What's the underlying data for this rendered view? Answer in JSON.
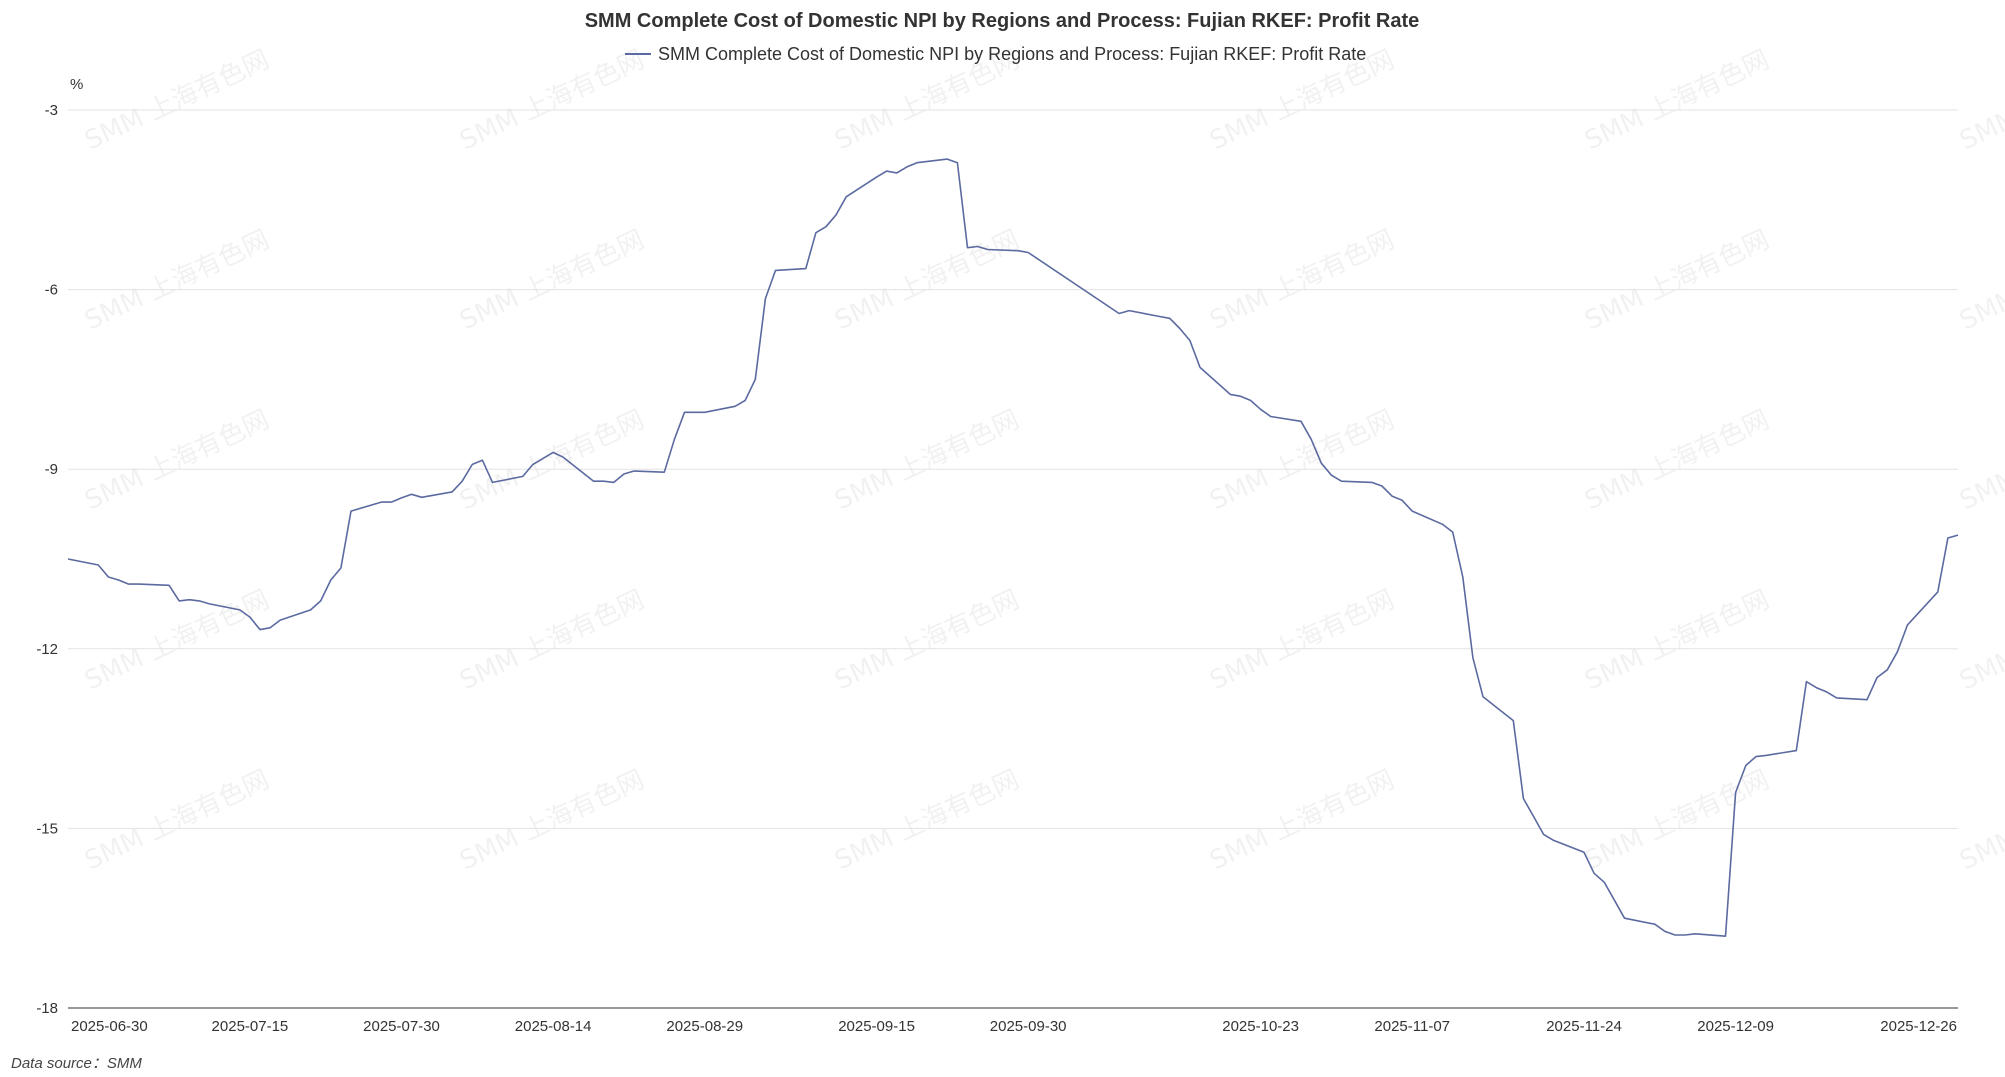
{
  "chart_data": {
    "type": "line",
    "title": "SMM Complete Cost of Domestic NPI by Regions and Process: Fujian RKEF: Profit Rate",
    "ylabel": "%",
    "ylim": [
      -18,
      -3
    ],
    "yticks": [
      -3,
      -6,
      -9,
      -12,
      -15,
      -18
    ],
    "xlim": [
      "2025-06-27",
      "2025-12-31"
    ],
    "xtick_labels": [
      "2025-06-30",
      "2025-07-15",
      "2025-07-30",
      "2025-08-14",
      "2025-08-29",
      "2025-09-15",
      "2025-09-30",
      "2025-10-23",
      "2025-11-07",
      "2025-11-24",
      "2025-12-09",
      "2025-12-26"
    ],
    "legend": "top-center",
    "grid": "horizontal",
    "line_color": "#5b6aa0",
    "series": [
      {
        "name": "SMM Complete Cost of Domestic NPI by Regions and Process: Fujian RKEF: Profit Rate",
        "x": [
          "2025-06-27",
          "2025-06-30",
          "2025-07-01",
          "2025-07-02",
          "2025-07-03",
          "2025-07-04",
          "2025-07-07",
          "2025-07-08",
          "2025-07-09",
          "2025-07-10",
          "2025-07-11",
          "2025-07-14",
          "2025-07-15",
          "2025-07-16",
          "2025-07-17",
          "2025-07-18",
          "2025-07-21",
          "2025-07-22",
          "2025-07-23",
          "2025-07-24",
          "2025-07-25",
          "2025-07-28",
          "2025-07-29",
          "2025-07-30",
          "2025-07-31",
          "2025-08-01",
          "2025-08-04",
          "2025-08-05",
          "2025-08-06",
          "2025-08-07",
          "2025-08-08",
          "2025-08-11",
          "2025-08-12",
          "2025-08-13",
          "2025-08-14",
          "2025-08-15",
          "2025-08-18",
          "2025-08-19",
          "2025-08-20",
          "2025-08-21",
          "2025-08-22",
          "2025-08-25",
          "2025-08-26",
          "2025-08-27",
          "2025-08-28",
          "2025-08-29",
          "2025-09-01",
          "2025-09-02",
          "2025-09-03",
          "2025-09-04",
          "2025-09-05",
          "2025-09-08",
          "2025-09-09",
          "2025-09-10",
          "2025-09-11",
          "2025-09-12",
          "2025-09-15",
          "2025-09-16",
          "2025-09-17",
          "2025-09-18",
          "2025-09-19",
          "2025-09-22",
          "2025-09-23",
          "2025-09-24",
          "2025-09-25",
          "2025-09-26",
          "2025-09-29",
          "2025-09-30",
          "2025-10-09",
          "2025-10-10",
          "2025-10-13",
          "2025-10-14",
          "2025-10-15",
          "2025-10-16",
          "2025-10-17",
          "2025-10-20",
          "2025-10-21",
          "2025-10-22",
          "2025-10-23",
          "2025-10-24",
          "2025-10-27",
          "2025-10-28",
          "2025-10-29",
          "2025-10-30",
          "2025-10-31",
          "2025-11-03",
          "2025-11-04",
          "2025-11-05",
          "2025-11-06",
          "2025-11-07",
          "2025-11-10",
          "2025-11-11",
          "2025-11-12",
          "2025-11-13",
          "2025-11-14",
          "2025-11-17",
          "2025-11-18",
          "2025-11-19",
          "2025-11-20",
          "2025-11-21",
          "2025-11-24",
          "2025-11-25",
          "2025-11-26",
          "2025-11-27",
          "2025-11-28",
          "2025-12-01",
          "2025-12-02",
          "2025-12-03",
          "2025-12-04",
          "2025-12-05",
          "2025-12-08",
          "2025-12-09",
          "2025-12-10",
          "2025-12-11",
          "2025-12-12",
          "2025-12-15",
          "2025-12-16",
          "2025-12-17",
          "2025-12-18",
          "2025-12-19",
          "2025-12-22",
          "2025-12-23",
          "2025-12-24",
          "2025-12-25",
          "2025-12-26",
          "2025-12-29",
          "2025-12-30",
          "2025-12-31"
        ],
        "values": [
          -10.5,
          -10.6,
          -10.8,
          -10.85,
          -10.92,
          -10.92,
          -10.94,
          -11.2,
          -11.18,
          -11.2,
          -11.25,
          -11.35,
          -11.47,
          -11.68,
          -11.65,
          -11.52,
          -11.35,
          -11.2,
          -10.85,
          -10.65,
          -9.7,
          -9.55,
          -9.55,
          -9.48,
          -9.42,
          -9.47,
          -9.38,
          -9.2,
          -8.92,
          -8.85,
          -9.22,
          -9.12,
          -8.92,
          -8.82,
          -8.72,
          -8.8,
          -9.2,
          -9.2,
          -9.22,
          -9.08,
          -9.03,
          -9.05,
          -8.5,
          -8.05,
          -8.05,
          -8.05,
          -7.95,
          -7.85,
          -7.5,
          -6.15,
          -5.68,
          -5.65,
          -5.05,
          -4.95,
          -4.75,
          -4.45,
          -4.12,
          -4.02,
          -4.05,
          -3.95,
          -3.88,
          -3.82,
          -3.88,
          -5.3,
          -5.28,
          -5.33,
          -5.35,
          -5.38,
          -6.4,
          -6.35,
          -6.45,
          -6.48,
          -6.65,
          -6.85,
          -7.3,
          -7.75,
          -7.78,
          -7.85,
          -8.0,
          -8.12,
          -8.2,
          -8.5,
          -8.9,
          -9.1,
          -9.2,
          -9.22,
          -9.28,
          -9.45,
          -9.52,
          -9.7,
          -9.92,
          -10.05,
          -10.8,
          -12.15,
          -12.8,
          -13.2,
          -14.5,
          -14.8,
          -15.1,
          -15.2,
          -15.4,
          -15.75,
          -15.9,
          -16.2,
          -16.5,
          -16.6,
          -16.72,
          -16.78,
          -16.78,
          -16.76,
          -16.8,
          -14.4,
          -13.95,
          -13.8,
          -13.78,
          -13.7,
          -12.55,
          -12.65,
          -12.72,
          -12.82,
          -12.85,
          -12.48,
          -12.35,
          -12.05,
          -11.6,
          -11.05,
          -10.15,
          -10.1
        ]
      }
    ]
  },
  "footer": {
    "source": "Data source：SMM"
  },
  "watermark": {
    "text": "SMM 上海有色网"
  }
}
